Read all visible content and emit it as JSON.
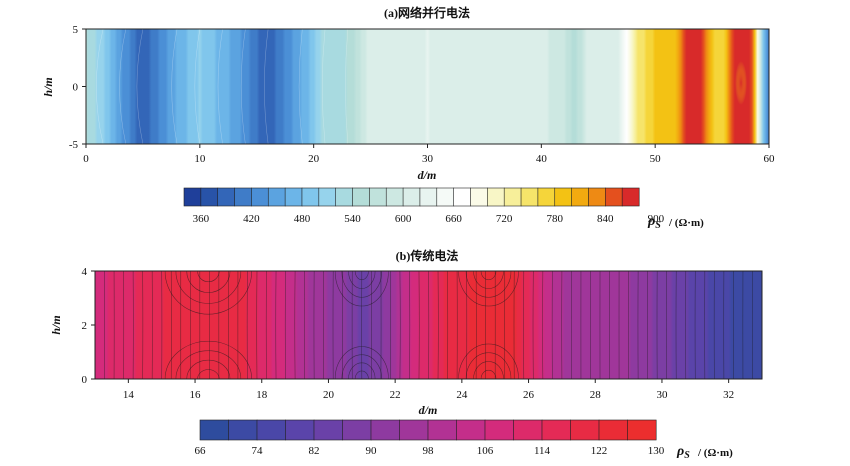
{
  "chart_data": [
    {
      "type": "heatmap",
      "title": "(a)网络并行电法",
      "xlabel": "d/m",
      "ylabel": "h/m",
      "xlim": [
        0,
        60
      ],
      "ylim": [
        -5,
        5
      ],
      "x_ticks": [
        "0",
        "10",
        "20",
        "30",
        "40",
        "50",
        "60"
      ],
      "y_ticks": [
        "5",
        "0",
        "-5"
      ],
      "colorbar": {
        "label_symbol": "ρ",
        "label_subscript": "S",
        "label_unit": "/ (Ω·m)",
        "range": [
          340,
          920
        ],
        "step": 20,
        "tick_labels": [
          "360",
          "420",
          "480",
          "540",
          "600",
          "660",
          "720",
          "780",
          "840",
          "900"
        ],
        "colors": [
          "#1f3f9a",
          "#2853a8",
          "#3366b8",
          "#3f7cc8",
          "#4b8fd6",
          "#5ba3e0",
          "#6cb5e8",
          "#80c6ec",
          "#96d3ec",
          "#a8dae0",
          "#b4ddd8",
          "#c0e2dc",
          "#cde8e2",
          "#dbeee9",
          "#e8f4f0",
          "#f5faf7",
          "#ffffff",
          "#fbfbe8",
          "#f8f6c6",
          "#f7ef9a",
          "#f6e46a",
          "#f5d53a",
          "#f3c214",
          "#f2aa10",
          "#ee8a14",
          "#e4501e",
          "#d82a2a"
        ]
      },
      "profile_x": [
        0,
        1.5,
        3.5,
        5,
        8,
        10,
        12,
        14,
        16,
        19,
        21,
        23,
        25,
        30,
        40,
        42,
        43,
        44,
        47,
        48.5,
        50,
        52,
        53,
        54,
        55,
        56,
        57,
        58,
        58.7,
        59.5,
        60
      ],
      "profile_value": [
        540,
        500,
        430,
        380,
        460,
        500,
        470,
        430,
        380,
        460,
        530,
        540,
        610,
        620,
        610,
        580,
        550,
        600,
        620,
        740,
        780,
        800,
        880,
        860,
        780,
        760,
        880,
        900,
        820,
        480,
        400
      ]
    },
    {
      "type": "heatmap",
      "title": "(b)传统电法",
      "xlabel": "d/m",
      "ylabel": "h/m",
      "xlim": [
        13,
        33
      ],
      "ylim": [
        0,
        4
      ],
      "x_ticks": [
        "14",
        "16",
        "18",
        "20",
        "22",
        "24",
        "26",
        "28",
        "30",
        "32"
      ],
      "y_ticks": [
        "4",
        "2",
        "0"
      ],
      "colorbar": {
        "label_symbol": "ρ",
        "label_subscript": "S",
        "label_unit": "/ (Ω·m)",
        "range": [
          66,
          130
        ],
        "step": 4,
        "tick_labels": [
          "66",
          "74",
          "82",
          "90",
          "98",
          "106",
          "114",
          "122",
          "130"
        ],
        "colors": [
          "#2e4c9e",
          "#3c4aa4",
          "#4a47a8",
          "#5a44aa",
          "#6a41a8",
          "#7c3ea4",
          "#8e3aa0",
          "#a0369a",
          "#b23294",
          "#c42e8a",
          "#d42b7c",
          "#dd2a6a",
          "#e42a56",
          "#e82b44",
          "#ea2c36",
          "#ec2e2e"
        ]
      },
      "profile_x": [
        13,
        14,
        15.5,
        16.5,
        17.5,
        18.5,
        19.5,
        20.5,
        21,
        21.5,
        22,
        22.5,
        23.5,
        24.5,
        25,
        25.5,
        26,
        26.5,
        27,
        28,
        29,
        30,
        31,
        32,
        33
      ],
      "profile_value": [
        108,
        113,
        120,
        120,
        118,
        108,
        97,
        90,
        85,
        88,
        96,
        108,
        118,
        124,
        125,
        124,
        115,
        105,
        98,
        96,
        94,
        88,
        80,
        74,
        70
      ]
    }
  ]
}
